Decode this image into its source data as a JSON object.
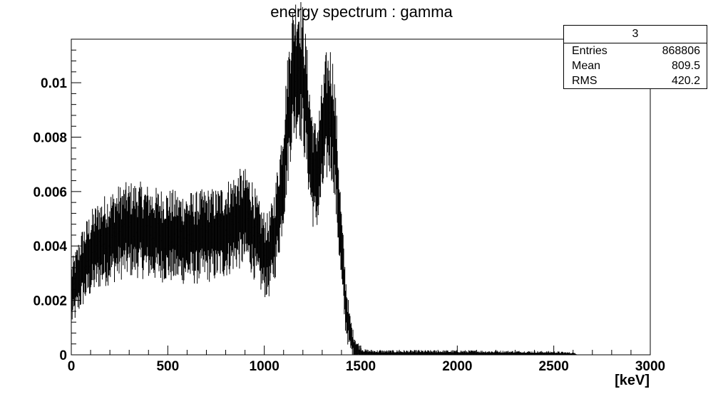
{
  "chart_data": {
    "type": "histogram",
    "title": "energy spectrum : gamma",
    "xlabel": "[keV]",
    "ylabel": "",
    "xlim": [
      0,
      3000
    ],
    "ylim": [
      0,
      0.0116
    ],
    "x_ticks": [
      0,
      500,
      1000,
      1500,
      2000,
      2500,
      3000
    ],
    "y_ticks": [
      0,
      0.002,
      0.004,
      0.006,
      0.008,
      0.01
    ],
    "y_tick_labels": [
      "0",
      "0.002",
      "0.004",
      "0.006",
      "0.008",
      "0.01"
    ],
    "grid": false,
    "bin_width_keV": 3,
    "series": [
      {
        "points": [
          [
            0,
            0.0022
          ],
          [
            25,
            0.0026
          ],
          [
            50,
            0.0031
          ],
          [
            75,
            0.0034
          ],
          [
            100,
            0.0037
          ],
          [
            150,
            0.0041
          ],
          [
            200,
            0.0043
          ],
          [
            250,
            0.0045
          ],
          [
            300,
            0.0046
          ],
          [
            350,
            0.0046
          ],
          [
            400,
            0.0045
          ],
          [
            450,
            0.0044
          ],
          [
            500,
            0.0044
          ],
          [
            550,
            0.0043
          ],
          [
            600,
            0.0043
          ],
          [
            650,
            0.0043
          ],
          [
            700,
            0.0044
          ],
          [
            750,
            0.0044
          ],
          [
            800,
            0.0046
          ],
          [
            850,
            0.0049
          ],
          [
            880,
            0.005
          ],
          [
            910,
            0.005
          ],
          [
            940,
            0.0047
          ],
          [
            960,
            0.0042
          ],
          [
            980,
            0.0039
          ],
          [
            1000,
            0.0037
          ],
          [
            1020,
            0.0036
          ],
          [
            1040,
            0.004
          ],
          [
            1060,
            0.0047
          ],
          [
            1080,
            0.0057
          ],
          [
            1100,
            0.0069
          ],
          [
            1120,
            0.0085
          ],
          [
            1140,
            0.01
          ],
          [
            1160,
            0.0106
          ],
          [
            1180,
            0.0107
          ],
          [
            1200,
            0.0102
          ],
          [
            1220,
            0.009
          ],
          [
            1240,
            0.0074
          ],
          [
            1260,
            0.0065
          ],
          [
            1280,
            0.0068
          ],
          [
            1300,
            0.0078
          ],
          [
            1320,
            0.0087
          ],
          [
            1340,
            0.009
          ],
          [
            1360,
            0.0084
          ],
          [
            1380,
            0.0062
          ],
          [
            1400,
            0.0038
          ],
          [
            1420,
            0.002
          ],
          [
            1440,
            0.0009
          ],
          [
            1460,
            0.0004
          ],
          [
            1480,
            0.00018
          ],
          [
            1500,
            8e-05
          ],
          [
            1520,
            4e-05
          ],
          [
            1600,
            3e-05
          ],
          [
            2000,
            3e-05
          ],
          [
            2500,
            2e-05
          ],
          [
            2600,
            1e-05
          ],
          [
            2620,
            0.0
          ],
          [
            3000,
            0.0
          ]
        ]
      }
    ]
  },
  "stats_box": {
    "title": "3",
    "rows": [
      {
        "label": "Entries",
        "value": "868806"
      },
      {
        "label": "Mean",
        "value": "809.5"
      },
      {
        "label": "RMS",
        "value": "420.2"
      }
    ]
  }
}
